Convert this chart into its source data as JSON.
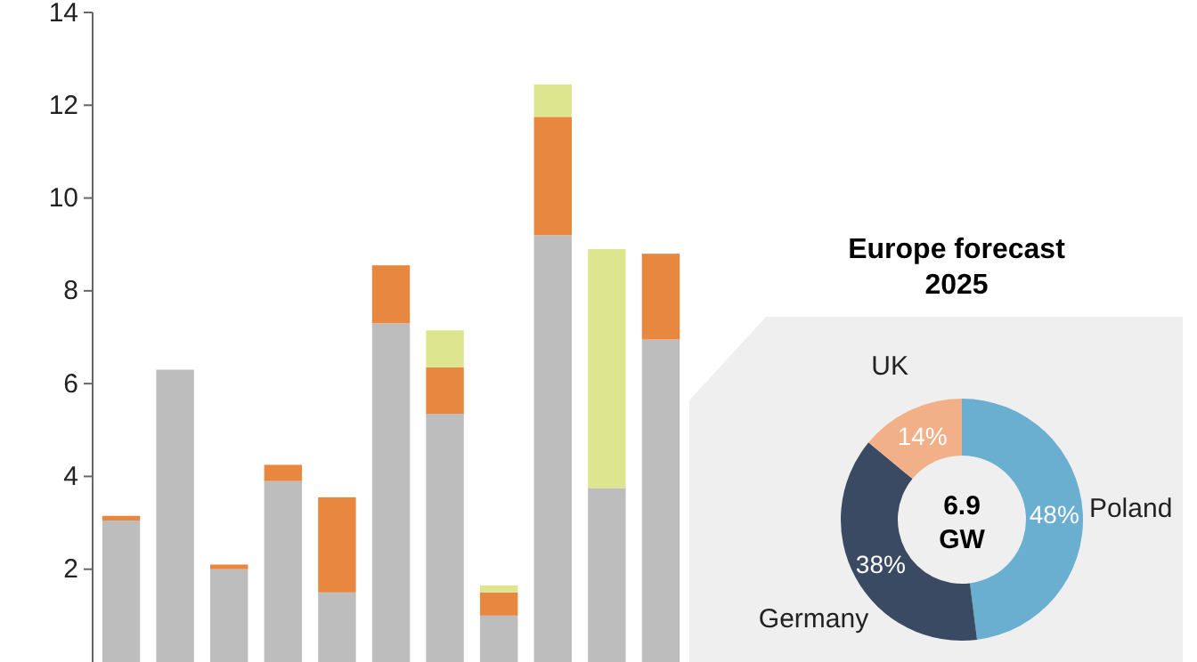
{
  "chart_data": [
    {
      "type": "bar",
      "stacked": true,
      "categories": [
        null,
        null,
        null,
        null,
        null,
        null,
        null,
        null,
        null,
        null,
        null
      ],
      "ylim": [
        0,
        14
      ],
      "yticks": [
        2,
        4,
        6,
        8,
        10,
        12,
        14
      ],
      "tick_labels": "y",
      "grid": false,
      "series": [
        {
          "color": "#bdbdbd",
          "values": [
            3.05,
            6.3,
            2.0,
            3.9,
            1.5,
            7.3,
            5.35,
            1.0,
            9.2,
            3.75,
            6.95
          ]
        },
        {
          "color": "#e8873f",
          "values": [
            0.1,
            0,
            0.1,
            0.35,
            2.05,
            1.25,
            1.0,
            0.5,
            2.55,
            0,
            1.85
          ]
        },
        {
          "color": "#dde68e",
          "values": [
            0,
            0,
            0,
            0,
            0,
            0,
            0.8,
            0.15,
            0.7,
            5.15,
            0
          ]
        }
      ]
    },
    {
      "type": "donut",
      "title": "Europe forecast 2025",
      "categories": [
        "Poland",
        "Germany",
        "UK"
      ],
      "values": [
        48,
        38,
        14
      ],
      "colors": [
        "#6aaed0",
        "#3b4a63",
        "#f2b088"
      ],
      "value_labels": [
        "48%",
        "38%",
        "14%"
      ],
      "annotations": [
        "6.9 GW"
      ]
    }
  ]
}
